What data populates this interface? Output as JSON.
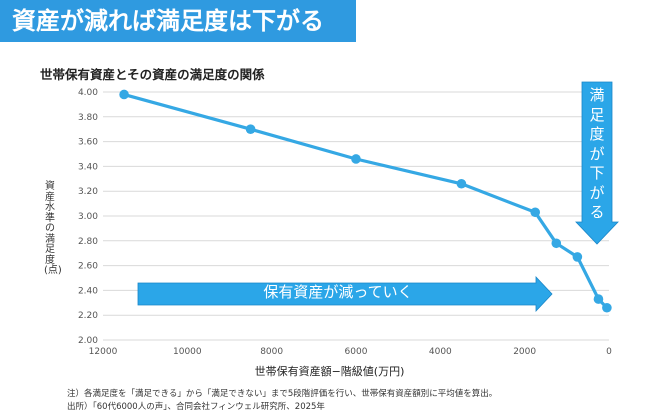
{
  "headline": "資産が減れば満足度は下がる",
  "chart_data": {
    "type": "line",
    "title": "世帯保有資産とその資産の満足度の関係",
    "xlabel": "世帯保有資産額−階級値(万円)",
    "ylabel": "資産水準の満足度(点)",
    "xlim": [
      12000,
      0
    ],
    "ylim": [
      2.0,
      4.0
    ],
    "x_reversed": true,
    "x_ticks": [
      12000,
      10000,
      8000,
      6000,
      4000,
      2000,
      0
    ],
    "y_ticks": [
      "2.00",
      "2.20",
      "2.40",
      "2.60",
      "2.80",
      "3.00",
      "3.20",
      "3.40",
      "3.60",
      "3.80",
      "4.00"
    ],
    "grid": true,
    "series": [
      {
        "color": "#35a8e4",
        "x": [
          11500,
          8500,
          6000,
          3500,
          1750,
          1250,
          750,
          250,
          50
        ],
        "y": [
          3.98,
          3.7,
          3.46,
          3.26,
          3.03,
          2.78,
          2.67,
          2.33,
          2.26
        ]
      }
    ],
    "annotations": {
      "right_arrow_text": "満足度が下がる",
      "bottom_arrow_text": "保有資産が減っていく"
    }
  },
  "notes": {
    "line1": "注）各満足度を「満足できる」から「満足できない」まで5段階評価を行い、世帯保有資産額別に平均値を算出。",
    "line2": "出所）「60代6000人の声」、合同会社フィンウェル研究所、2025年"
  },
  "colors": {
    "accent": "#2f9ae0",
    "line": "#35a8e4",
    "arrow": "#2ba6e8",
    "grid": "#d9d9d9"
  }
}
